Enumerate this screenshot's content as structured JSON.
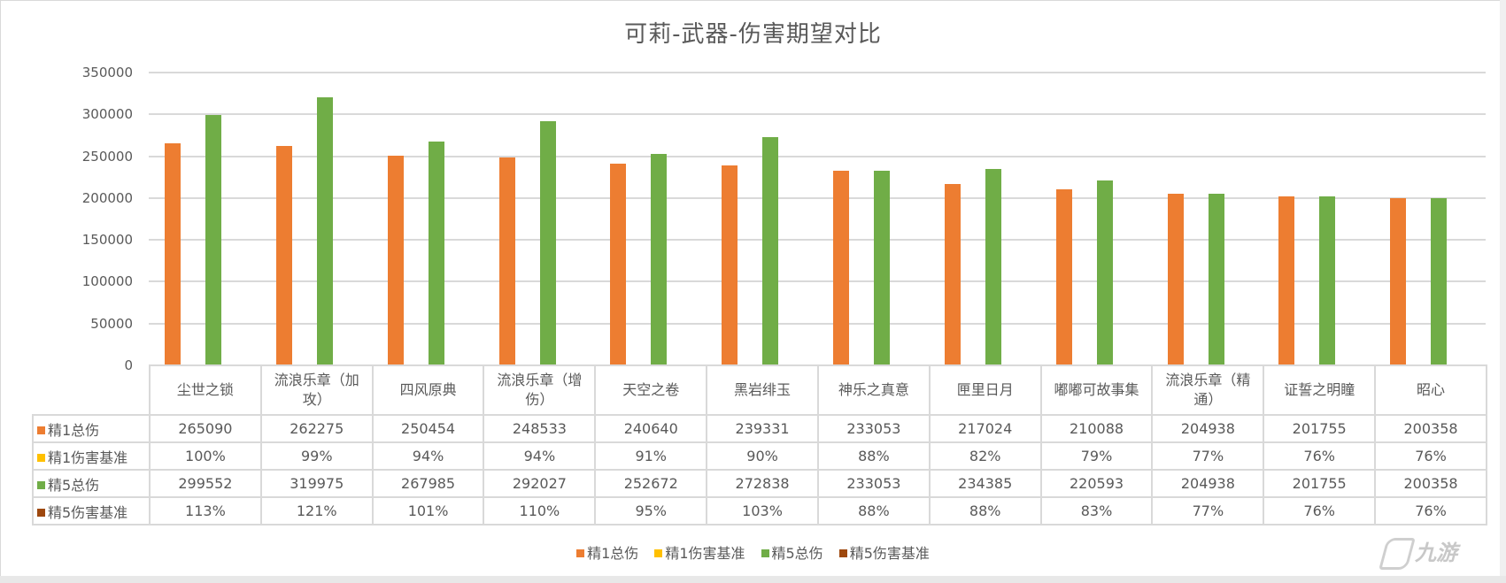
{
  "chart_data": {
    "type": "bar",
    "title": "可莉-武器-伤害期望对比",
    "xlabel": "",
    "ylabel": "",
    "ylim": [
      0,
      350000
    ],
    "y_ticks": [
      "350000",
      "300000",
      "250000",
      "200000",
      "150000",
      "100000",
      "50000",
      "0"
    ],
    "grid": true,
    "legend_position": "bottom",
    "categories": [
      "尘世之锁",
      "流浪乐章（加攻）",
      "四风原典",
      "流浪乐章（增伤）",
      "天空之卷",
      "黑岩绯玉",
      "神乐之真意",
      "匣里日月",
      "嘟嘟可故事集",
      "流浪乐章（精通）",
      "证誓之明瞳",
      "昭心"
    ],
    "series": [
      {
        "name": "精1总伤",
        "color": "#ed7d31",
        "plotted": true,
        "values": [
          265090,
          262275,
          250454,
          248533,
          240640,
          239331,
          233053,
          217024,
          210088,
          204938,
          201755,
          200358
        ]
      },
      {
        "name": "精1伤害基准",
        "color": "#ffc000",
        "plotted": false,
        "values": [
          "100%",
          "99%",
          "94%",
          "94%",
          "91%",
          "90%",
          "88%",
          "82%",
          "79%",
          "77%",
          "76%",
          "76%"
        ]
      },
      {
        "name": "精5总伤",
        "color": "#70ad47",
        "plotted": true,
        "values": [
          299552,
          319975,
          267985,
          292027,
          252672,
          272838,
          233053,
          234385,
          220593,
          204938,
          201755,
          200358
        ]
      },
      {
        "name": "精5伤害基准",
        "color": "#9e480e",
        "plotted": false,
        "values": [
          "113%",
          "121%",
          "101%",
          "110%",
          "95%",
          "103%",
          "88%",
          "88%",
          "83%",
          "77%",
          "76%",
          "76%"
        ]
      }
    ]
  },
  "header_lines": [
    [
      "尘世之锁",
      ""
    ],
    [
      "流浪乐章（加",
      "攻）"
    ],
    [
      "四风原典",
      ""
    ],
    [
      "流浪乐章（增",
      "伤）"
    ],
    [
      "天空之卷",
      ""
    ],
    [
      "黑岩绯玉",
      ""
    ],
    [
      "神乐之真意",
      ""
    ],
    [
      "匣里日月",
      ""
    ],
    [
      "嘟嘟可故事集",
      ""
    ],
    [
      "流浪乐章（精",
      "通）"
    ],
    [
      "证誓之明瞳",
      ""
    ],
    [
      "昭心",
      ""
    ]
  ],
  "table_rows": [
    {
      "label": "精1总伤",
      "color": "#ed7d31",
      "cells": [
        "265090",
        "262275",
        "250454",
        "248533",
        "240640",
        "239331",
        "233053",
        "217024",
        "210088",
        "204938",
        "201755",
        "200358"
      ]
    },
    {
      "label": "精1伤害基准",
      "color": "#ffc000",
      "cells": [
        "100%",
        "99%",
        "94%",
        "94%",
        "91%",
        "90%",
        "88%",
        "82%",
        "79%",
        "77%",
        "76%",
        "76%"
      ]
    },
    {
      "label": "精5总伤",
      "color": "#70ad47",
      "cells": [
        "299552",
        "319975",
        "267985",
        "292027",
        "252672",
        "272838",
        "233053",
        "234385",
        "220593",
        "204938",
        "201755",
        "200358"
      ]
    },
    {
      "label": "精5伤害基准",
      "color": "#9e480e",
      "cells": [
        "113%",
        "121%",
        "101%",
        "110%",
        "95%",
        "103%",
        "88%",
        "88%",
        "83%",
        "77%",
        "76%",
        "76%"
      ]
    }
  ],
  "legend": [
    {
      "label": "精1总伤",
      "color": "#ed7d31"
    },
    {
      "label": "精1伤害基准",
      "color": "#ffc000"
    },
    {
      "label": "精5总伤",
      "color": "#70ad47"
    },
    {
      "label": "精5伤害基准",
      "color": "#9e480e"
    }
  ],
  "watermark": {
    "text": "九游",
    "icon": "jiuyou-logo-icon"
  }
}
